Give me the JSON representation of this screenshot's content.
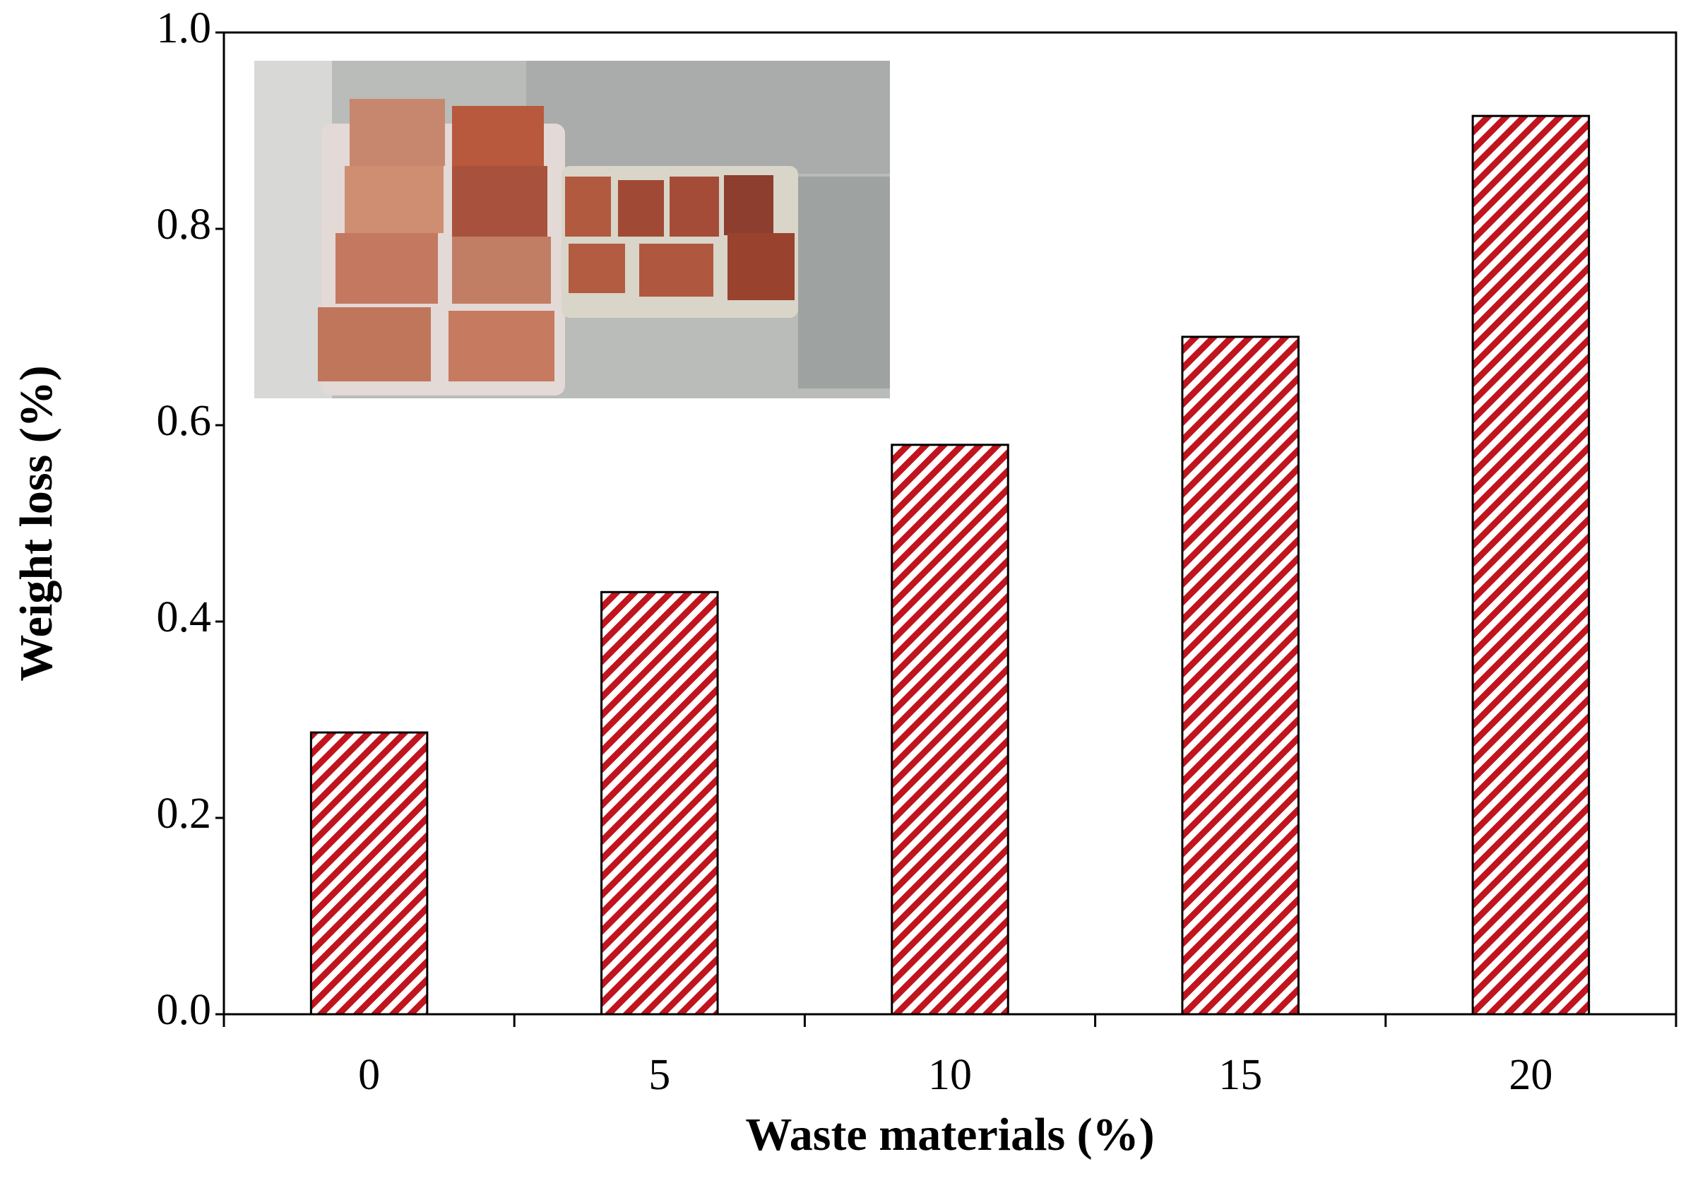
{
  "chart_data": {
    "type": "bar",
    "x_label": "Waste materials (%)",
    "y_label": "Weight loss (%)",
    "categories": [
      "0",
      "5",
      "10",
      "15",
      "20"
    ],
    "values": [
      0.287,
      0.43,
      0.58,
      0.69,
      0.915
    ],
    "color": "#c0141e",
    "ylim": [
      0,
      1.0
    ],
    "yticks": [
      {
        "value": 0,
        "label": "0.0"
      },
      0.2,
      0.4,
      0.6,
      0.8,
      {
        "value": 1.0,
        "label": "1.0"
      }
    ],
    "grid": false
  }
}
